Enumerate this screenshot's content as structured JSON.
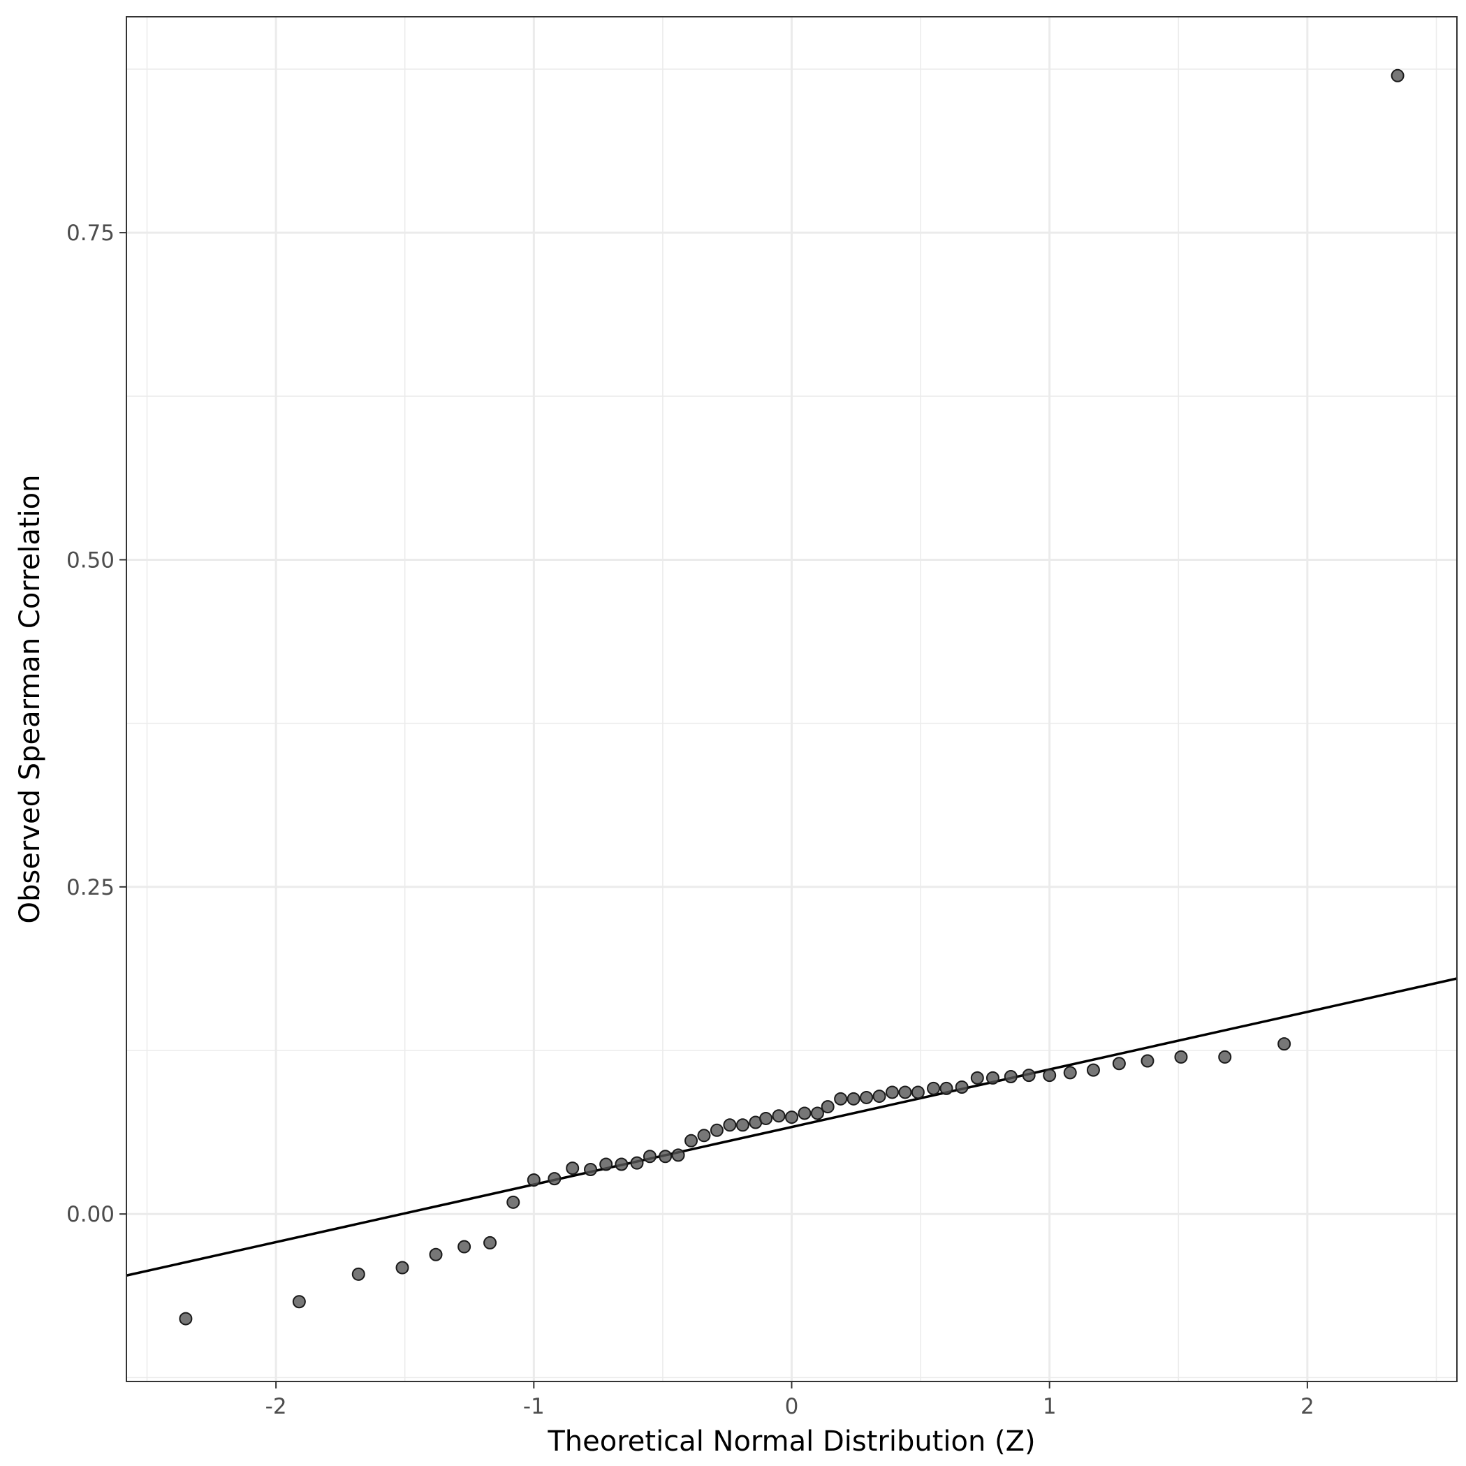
{
  "chart_data": {
    "type": "scatter",
    "title": "",
    "xlabel": "Theoretical Normal Distribution (Z)",
    "ylabel": "Observed Spearman Correlation",
    "xlim": [
      -2.58,
      2.58
    ],
    "ylim": [
      -0.128,
      0.915
    ],
    "x_ticks": [
      -2,
      -1,
      0,
      1,
      2
    ],
    "x_tick_labels": [
      "-2",
      "-1",
      "0",
      "1",
      "2"
    ],
    "y_ticks": [
      0,
      0.25,
      0.5,
      0.75
    ],
    "y_tick_labels": [
      "0.00",
      "0.25",
      "0.50",
      "0.75"
    ],
    "grid": true,
    "legend": "none",
    "reference_line": {
      "x": [
        -2.58,
        2.58
      ],
      "y": [
        -0.047,
        0.18
      ],
      "color": "#000000"
    },
    "point_color": "#555555",
    "point_alpha": 0.8,
    "series": [
      {
        "x": [
          -2.35,
          -1.91,
          -1.68,
          -1.51,
          -1.38,
          -1.27,
          -1.17,
          -1.08,
          -1.0,
          -0.92,
          -0.85,
          -0.78,
          -0.72,
          -0.66,
          -0.6,
          -0.55,
          -0.49,
          -0.44,
          -0.39,
          -0.34,
          -0.29,
          -0.24,
          -0.19,
          -0.14,
          -0.1,
          -0.05,
          0.0,
          0.05,
          0.1,
          0.14,
          0.19,
          0.24,
          0.29,
          0.34,
          0.39,
          0.44,
          0.49,
          0.55,
          0.6,
          0.66,
          0.72,
          0.78,
          0.85,
          0.92,
          1.0,
          1.08,
          1.17,
          1.27,
          1.38,
          1.51,
          1.68,
          1.91,
          2.35
        ],
        "y": [
          -0.08,
          -0.067,
          -0.046,
          -0.041,
          -0.031,
          -0.025,
          -0.022,
          0.009,
          0.026,
          0.027,
          0.035,
          0.034,
          0.038,
          0.038,
          0.039,
          0.044,
          0.044,
          0.045,
          0.056,
          0.06,
          0.064,
          0.068,
          0.068,
          0.07,
          0.073,
          0.075,
          0.074,
          0.077,
          0.077,
          0.082,
          0.088,
          0.088,
          0.089,
          0.09,
          0.093,
          0.093,
          0.093,
          0.096,
          0.096,
          0.097,
          0.104,
          0.104,
          0.105,
          0.106,
          0.106,
          0.108,
          0.11,
          0.115,
          0.117,
          0.12,
          0.12,
          0.13,
          0.87
        ]
      }
    ]
  }
}
